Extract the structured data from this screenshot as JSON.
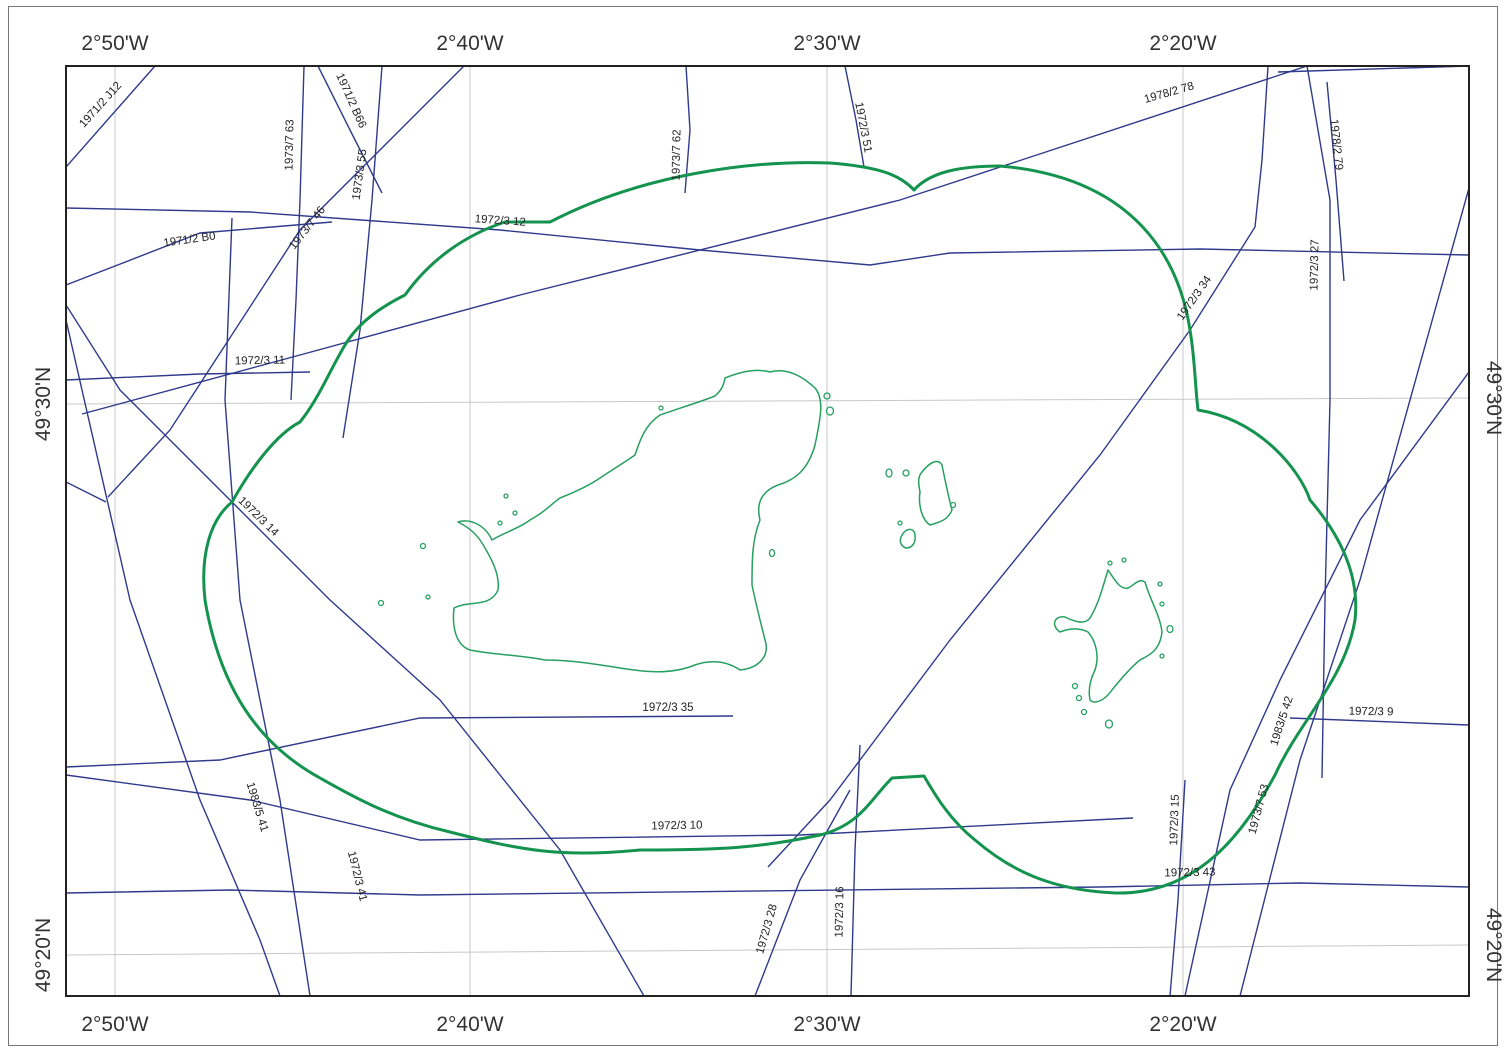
{
  "map": {
    "colors": {
      "track": "#2f3a8c",
      "boundary": "#14934f",
      "coast": "#26a060",
      "grid": "#c8c8c8",
      "frame": "#222222"
    },
    "longitude_labels": [
      "2°50'W",
      "2°40'W",
      "2°30'W",
      "2°20'W"
    ],
    "latitude_labels": [
      "49°30'N",
      "49°20'N"
    ],
    "track_labels": [
      "1971/2 J12",
      "1973/7 63",
      "1971/2 B66",
      "1973/3 55",
      "1973/7 62",
      "1972/3 51",
      "1978/2 78",
      "1978/2 79",
      "1971/2 B0",
      "1973/7 46",
      "1972/3 12",
      "1972/3 34",
      "1972/3 27",
      "1972/3 11",
      "1972/3 14",
      "1972/3 35",
      "1983/5 42",
      "1972/3 9",
      "1983/5 41",
      "1972/3 41",
      "1972/3 10",
      "1972/3 15",
      "1973/7 53",
      "1972/3 43",
      "1972/3 28",
      "1972/3 16"
    ]
  }
}
